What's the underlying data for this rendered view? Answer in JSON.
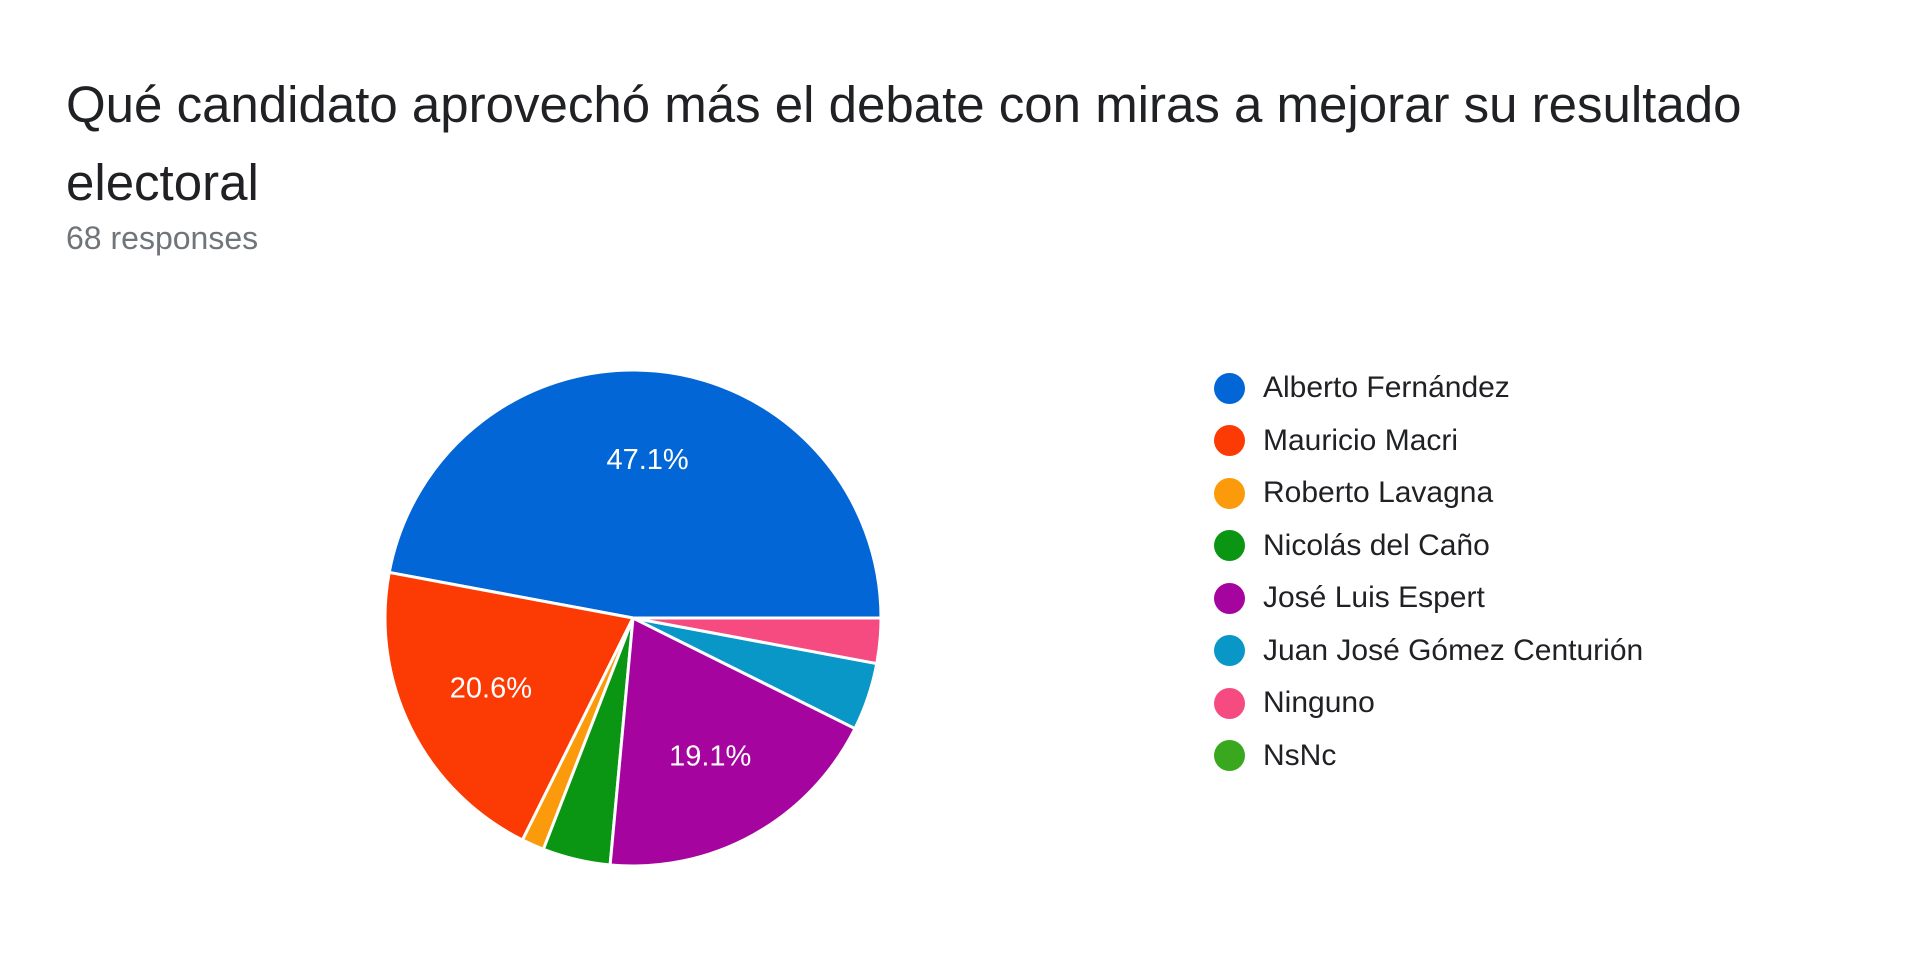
{
  "header": {
    "title": "Qué candidato aprovechó más el debate con miras a mejorar su resultado electoral",
    "responses": "68 responses"
  },
  "chart_data": {
    "type": "pie",
    "title": "Qué candidato aprovechó más el debate con miras a mejorar su resultado electoral",
    "subtitle": "68 responses",
    "total_responses": 68,
    "legend_position": "right",
    "start_angle": "3 o'clock, counter-clockwise in legend order",
    "slices": [
      {
        "label": "Alberto Fernández",
        "value": 32,
        "percent": 47.1,
        "percent_label": "47.1%",
        "color": "#0366d6"
      },
      {
        "label": "Mauricio Macri",
        "value": 14,
        "percent": 20.6,
        "percent_label": "20.6%",
        "color": "#fc3b04"
      },
      {
        "label": "Roberto Lavagna",
        "value": 1,
        "percent": 1.5,
        "percent_label": "",
        "color": "#fb9a0a"
      },
      {
        "label": "Nicolás del Caño",
        "value": 3,
        "percent": 4.4,
        "percent_label": "",
        "color": "#0a9612"
      },
      {
        "label": "José Luis Espert",
        "value": 13,
        "percent": 19.1,
        "percent_label": "19.1%",
        "color": "#a5049f"
      },
      {
        "label": "Juan José Gómez Centurión",
        "value": 3,
        "percent": 4.4,
        "percent_label": "",
        "color": "#0897c6"
      },
      {
        "label": "Ninguno",
        "value": 2,
        "percent": 2.9,
        "percent_label": "",
        "color": "#f54b80"
      },
      {
        "label": "NsNc",
        "value": 0,
        "percent": 0,
        "percent_label": "",
        "color": "#3aa81f"
      }
    ]
  }
}
